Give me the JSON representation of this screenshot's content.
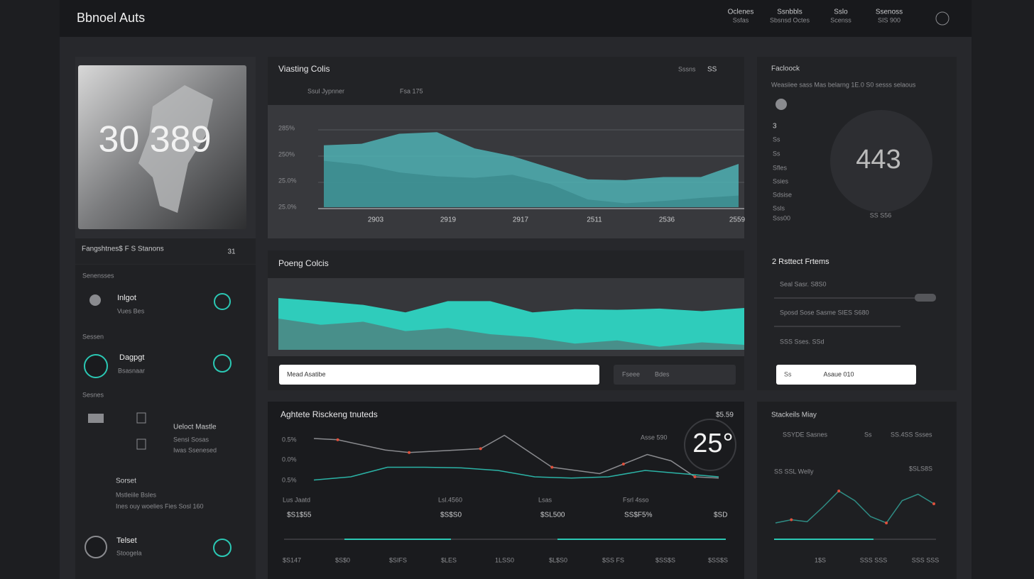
{
  "header": {
    "title": "Bbnoel Auts",
    "nav": [
      [
        "Oclenes",
        "Ssfas"
      ],
      [
        "Ssnbbls",
        "Sbsnsd Octes"
      ],
      [
        "Sslo",
        "Scenss"
      ],
      [
        "Ssenoss",
        "SIS 900"
      ]
    ]
  },
  "profile": {
    "image_text": "30 389",
    "caption": "Fangshtnes$ F S Stanons",
    "badge": "31"
  },
  "list": {
    "sections": [
      "Senensses",
      "Sessen",
      "Sesnes"
    ],
    "items": [
      {
        "title": "Inlgot",
        "sub": "Vues Bes"
      },
      {
        "title": "Dagpgt",
        "sub": "Bsasnaar"
      }
    ],
    "block": [
      "Ueloct Mastle",
      "Sensi Sosas",
      "Iwas Ssenesed"
    ],
    "footer_head": "Sorset",
    "footer_lines": [
      "Mstleiile Bsles",
      "Ines ouy woelies Fies Sosl 160"
    ],
    "last": {
      "title": "Telset",
      "sub": "Stoogela"
    }
  },
  "viewing": {
    "title": "Viasting Colis",
    "menu": "Sssns",
    "num": "SS",
    "legend": "Ssul Jypnner",
    "value": "Fsa 175",
    "yticks": [
      "285%",
      "250%",
      "25.0%",
      "25.0%"
    ],
    "xticks": [
      "2903",
      "2919",
      "2917",
      "2511",
      "2536",
      "2559"
    ],
    "chart": {
      "type": "area",
      "ylim": [
        0,
        100
      ],
      "series": [
        {
          "color": "#4fb1b4",
          "values": [
            80,
            82,
            95,
            97,
            76,
            66,
            51,
            36,
            35,
            39,
            39,
            56
          ]
        },
        {
          "color": "#357f83",
          "values": [
            60,
            55,
            45,
            40,
            38,
            42,
            30,
            10,
            5,
            8,
            12,
            15
          ]
        }
      ]
    }
  },
  "poeng": {
    "title": "Poeng Colcis",
    "input": "Mead Asatibe",
    "side": [
      "Fseee",
      "Bdes"
    ],
    "chart": {
      "type": "area",
      "ylim": [
        0,
        100
      ],
      "series": [
        {
          "color": "#2ee6d2",
          "values": [
            83,
            78,
            72,
            60,
            78,
            78,
            60,
            65,
            64,
            66,
            62,
            67
          ]
        },
        {
          "color": "#5c5d62",
          "values": [
            50,
            40,
            45,
            30,
            35,
            25,
            20,
            10,
            15,
            5,
            12,
            8
          ]
        }
      ]
    }
  },
  "tracking": {
    "title": "Aghtete Risckeng tnuteds",
    "value": "$5.59",
    "gauge": "25°",
    "note": "Asse 590",
    "yticks": [
      "0.5%",
      "0.0%",
      "0.5%"
    ],
    "row1": [
      "Lus Jaatd",
      "Lsl.4560",
      "Lsas",
      "Fsrl 4sso"
    ],
    "row2": [
      "$S1$55",
      "$S$S0",
      "$SL500",
      "SS$F5%",
      "$SD"
    ],
    "row3": [
      "$S147",
      "$S$0",
      "$SIFS",
      "$LES",
      "1LSS0",
      "$L$S0",
      "$SS FS",
      "$SS$S",
      "$SS$S"
    ],
    "chart": {
      "type": "line",
      "ylim": [
        0,
        100
      ],
      "series": [
        {
          "color": "#8a8b8f",
          "values": [
            80,
            78,
            70,
            62,
            58,
            60,
            62,
            64,
            85,
            60,
            35,
            30,
            25,
            40,
            55,
            45,
            20,
            18
          ]
        },
        {
          "color": "#2bb3a6",
          "values": [
            15,
            20,
            35,
            35,
            34,
            30,
            20,
            18,
            20,
            30,
            25,
            20
          ]
        }
      ]
    }
  },
  "feedback": {
    "title": "Facloock",
    "subtitle": "Weasiiee sass Mas belarng 1E.0  S0 sesss selaous",
    "gauge": "443",
    "gauge_caption": "SS S56",
    "list": [
      "3",
      "Ss",
      "Ss",
      "Sfles",
      "Ssies",
      "Sdsise",
      "Ssls",
      "Sss00"
    ],
    "section": "2 Rsttect Frtems",
    "sliders": [
      "Seal Sasr. S8S0",
      "Sposd Sose Sasme SIES S680",
      "SSS Sses. SSd"
    ],
    "button_left": "Ss",
    "button": "Asaue 010"
  },
  "stack": {
    "title": "Stackeils Miay",
    "row": [
      "SSYDE Sasnes",
      "Ss",
      "SS.4SS Ssses"
    ],
    "label": "SS SSL Welly",
    "value": "$SLS8S",
    "xlabels": [
      "1$S",
      "SSS SSS",
      "SSS SSS"
    ],
    "chart": {
      "type": "line",
      "ylim": [
        0,
        100
      ],
      "series": [
        {
          "color": "#2f8d85",
          "values": [
            20,
            25,
            22,
            45,
            70,
            55,
            30,
            20,
            55,
            65,
            50
          ]
        }
      ]
    }
  }
}
